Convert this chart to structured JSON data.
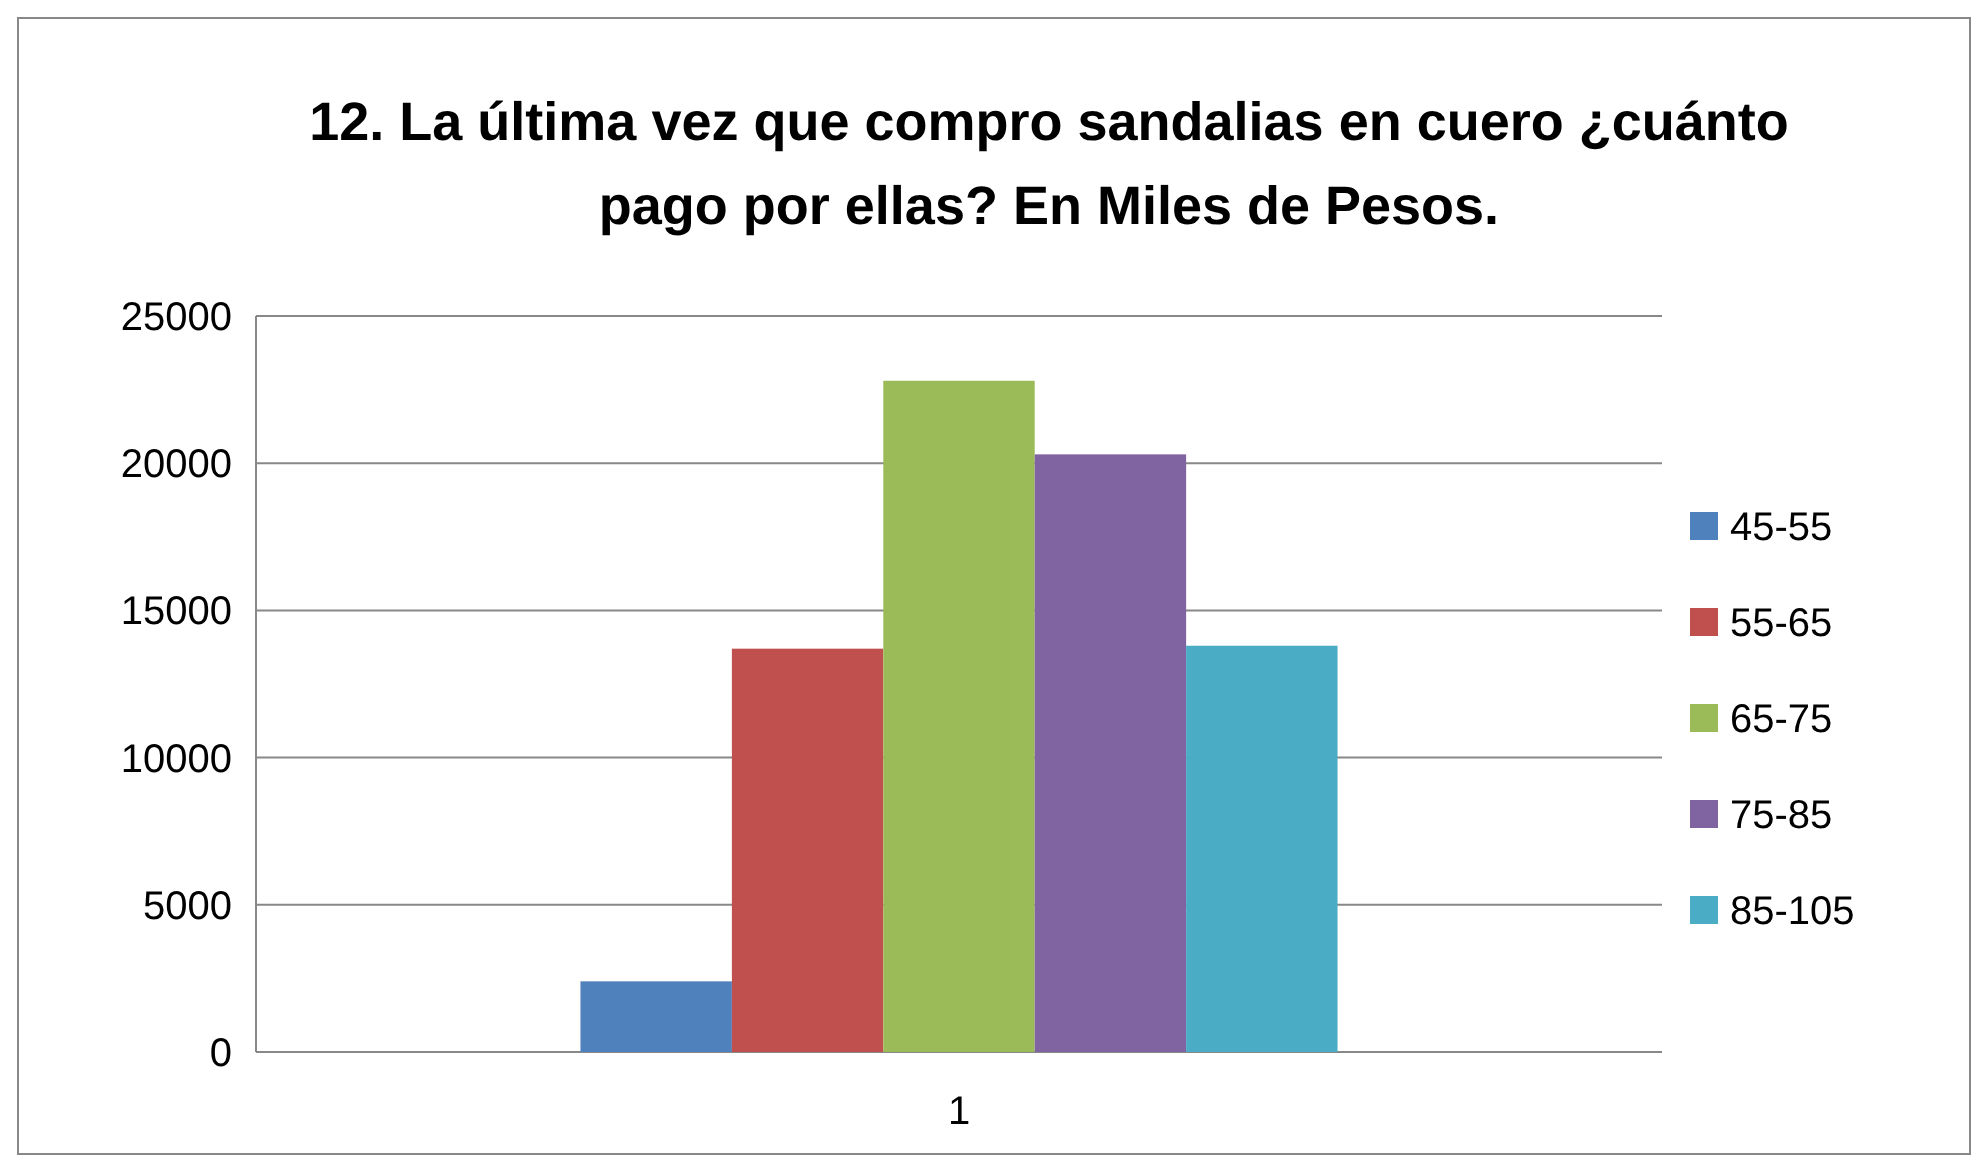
{
  "chart_data": {
    "type": "bar",
    "title": "12. La última vez que compro sandalias en cuero ¿cuánto pago por ellas? En Miles de Pesos.",
    "categories": [
      "1"
    ],
    "series": [
      {
        "name": "45-55",
        "color": "#4f81bd",
        "values": [
          2400
        ]
      },
      {
        "name": "55-65",
        "color": "#c0504d",
        "values": [
          13700
        ]
      },
      {
        "name": "65-75",
        "color": "#9bbb59",
        "values": [
          22800
        ]
      },
      {
        "name": "75-85",
        "color": "#8064a2",
        "values": [
          20300
        ]
      },
      {
        "name": "85-105",
        "color": "#4bacc6",
        "values": [
          13800
        ]
      }
    ],
    "ylim": [
      0,
      25000
    ],
    "yticks": [
      0,
      5000,
      10000,
      15000,
      20000,
      25000
    ],
    "grid": "y",
    "legend": "right"
  }
}
